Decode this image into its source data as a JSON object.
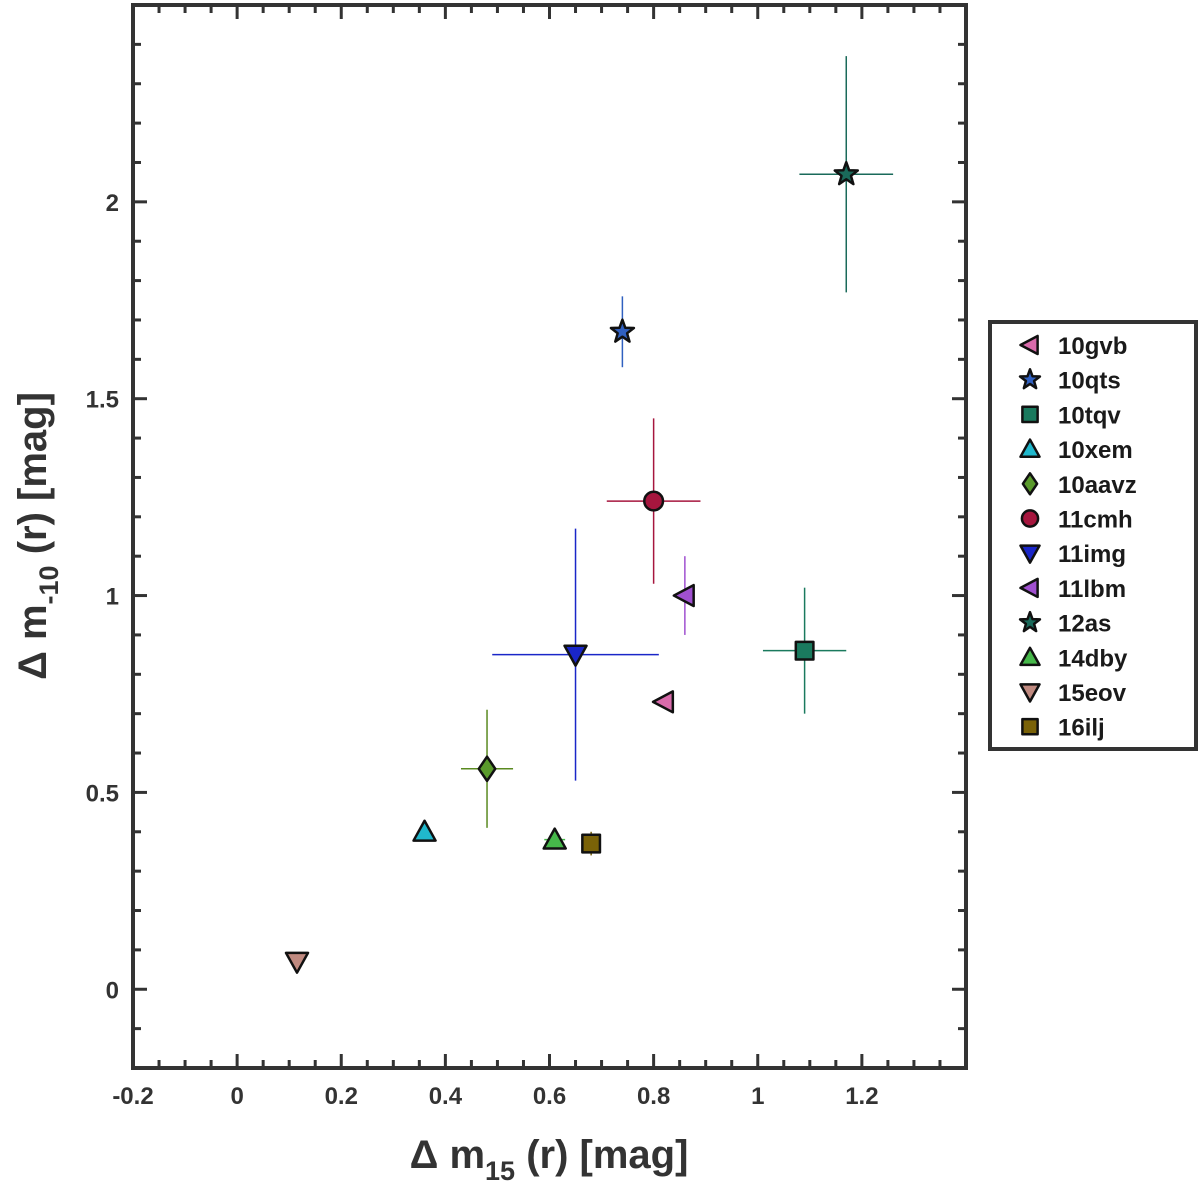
{
  "chart_data": {
    "type": "scatter",
    "title": "",
    "xlabel": {
      "prefix": "Δ m",
      "sub": "15",
      "suffix": " (r) [mag]"
    },
    "ylabel": {
      "prefix": "Δ m",
      "sub": "-10",
      "suffix": " (r) [mag]"
    },
    "xlim": [
      -0.2,
      1.4
    ],
    "ylim": [
      -0.2,
      2.5
    ],
    "x_ticks": [
      {
        "value": -0.2,
        "label": "-0.2"
      },
      {
        "value": 0,
        "label": "0"
      },
      {
        "value": 0.2,
        "label": "0.2"
      },
      {
        "value": 0.4,
        "label": "0.4"
      },
      {
        "value": 0.6,
        "label": "0.6"
      },
      {
        "value": 0.8,
        "label": "0.8"
      },
      {
        "value": 1,
        "label": "1"
      },
      {
        "value": 1.2,
        "label": "1.2"
      }
    ],
    "y_ticks": [
      {
        "value": 0,
        "label": "0"
      },
      {
        "value": 0.5,
        "label": "0.5"
      },
      {
        "value": 1,
        "label": "1"
      },
      {
        "value": 1.5,
        "label": "1.5"
      },
      {
        "value": 2,
        "label": "2"
      }
    ],
    "x_minor_step": 0.05,
    "y_minor_step": 0.1,
    "grid": false,
    "legend_position": "right",
    "series": [
      {
        "name": "10gvb",
        "marker": "triangle-left",
        "color": "#d96bab",
        "edge": "#111111",
        "x": 0.82,
        "y": 0.73,
        "xerr": null,
        "yerr": null,
        "errcolor": "#d96bab"
      },
      {
        "name": "10qts",
        "marker": "star",
        "color": "#3060c0",
        "edge": "#111111",
        "x": 0.74,
        "y": 1.67,
        "xerr": null,
        "yerr": 0.09,
        "errcolor": "#3060c0"
      },
      {
        "name": "10tqv",
        "marker": "square",
        "color": "#1a7a5e",
        "edge": "#111111",
        "x": 1.09,
        "y": 0.86,
        "xerr": 0.08,
        "yerr": 0.16,
        "errcolor": "#1a7a5e"
      },
      {
        "name": "10xem",
        "marker": "triangle-up",
        "color": "#20b8cc",
        "edge": "#111111",
        "x": 0.36,
        "y": 0.4,
        "xerr": null,
        "yerr": null,
        "errcolor": "#20b8cc"
      },
      {
        "name": "10aavz",
        "marker": "diamond",
        "color": "#5a9a2c",
        "edge": "#111111",
        "x": 0.48,
        "y": 0.56,
        "xerr": 0.05,
        "yerr": 0.15,
        "errcolor": "#5a8a20"
      },
      {
        "name": "11cmh",
        "marker": "circle",
        "color": "#a6163e",
        "edge": "#111111",
        "x": 0.8,
        "y": 1.24,
        "xerr": 0.09,
        "yerr": 0.21,
        "errcolor": "#a6163e"
      },
      {
        "name": "11img",
        "marker": "triangle-down",
        "color": "#1a26c8",
        "edge": "#111111",
        "x": 0.65,
        "y": 0.85,
        "xerr": 0.16,
        "yerr": 0.32,
        "errcolor": "#1a26c8"
      },
      {
        "name": "11lbm",
        "marker": "triangle-left",
        "color": "#a050d0",
        "edge": "#111111",
        "x": 0.86,
        "y": 1.0,
        "xerr": null,
        "yerr": 0.1,
        "errcolor": "#a050d0"
      },
      {
        "name": "12as",
        "marker": "star",
        "color": "#1a6a5a",
        "edge": "#111111",
        "x": 1.17,
        "y": 2.07,
        "xerr": 0.09,
        "yerr": 0.3,
        "errcolor": "#1a6a5a"
      },
      {
        "name": "14dby",
        "marker": "triangle-up",
        "color": "#46b84a",
        "edge": "#111111",
        "x": 0.61,
        "y": 0.38,
        "xerr": 0.02,
        "yerr": null,
        "errcolor": "#46b84a"
      },
      {
        "name": "15eov",
        "marker": "triangle-down",
        "color": "#c08a80",
        "edge": "#111111",
        "x": 0.115,
        "y": 0.07,
        "xerr": null,
        "yerr": null,
        "errcolor": "#c08a80"
      },
      {
        "name": "16ilj",
        "marker": "square",
        "color": "#7a6208",
        "edge": "#111111",
        "x": 0.68,
        "y": 0.37,
        "xerr": null,
        "yerr": 0.03,
        "errcolor": "#7a6208"
      }
    ]
  }
}
